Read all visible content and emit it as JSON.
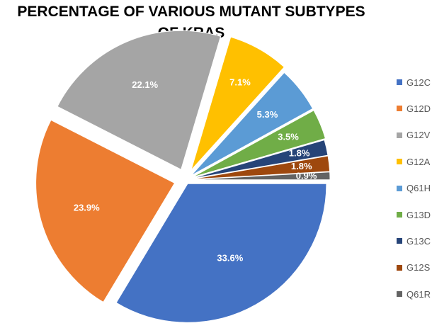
{
  "chart_data": {
    "type": "pie",
    "title": "PERCENTAGE OF VARIOUS MUTANT SUBTYPES OF KRAS",
    "title_lines": [
      "PERCENTAGE OF VARIOUS MUTANT SUBTYPES",
      "OF KRAS"
    ],
    "legend_position": "right",
    "exploded": true,
    "categories": [
      "G12C",
      "G12D",
      "G12V",
      "G12A",
      "Q61H",
      "G13D",
      "G13C",
      "G12S",
      "Q61R"
    ],
    "values": [
      33.6,
      23.9,
      22.1,
      7.1,
      5.3,
      3.5,
      1.8,
      1.8,
      0.9
    ],
    "labels": [
      "33.6%",
      "23.9%",
      "22.1%",
      "7.1%",
      "5.3%",
      "3.5%",
      "1.8%",
      "1.8%",
      "0.9%"
    ],
    "colors": [
      "#4472C4",
      "#ED7D31",
      "#A5A5A5",
      "#FFC000",
      "#5B9BD5",
      "#70AD47",
      "#264478",
      "#9E480E",
      "#636363"
    ]
  }
}
